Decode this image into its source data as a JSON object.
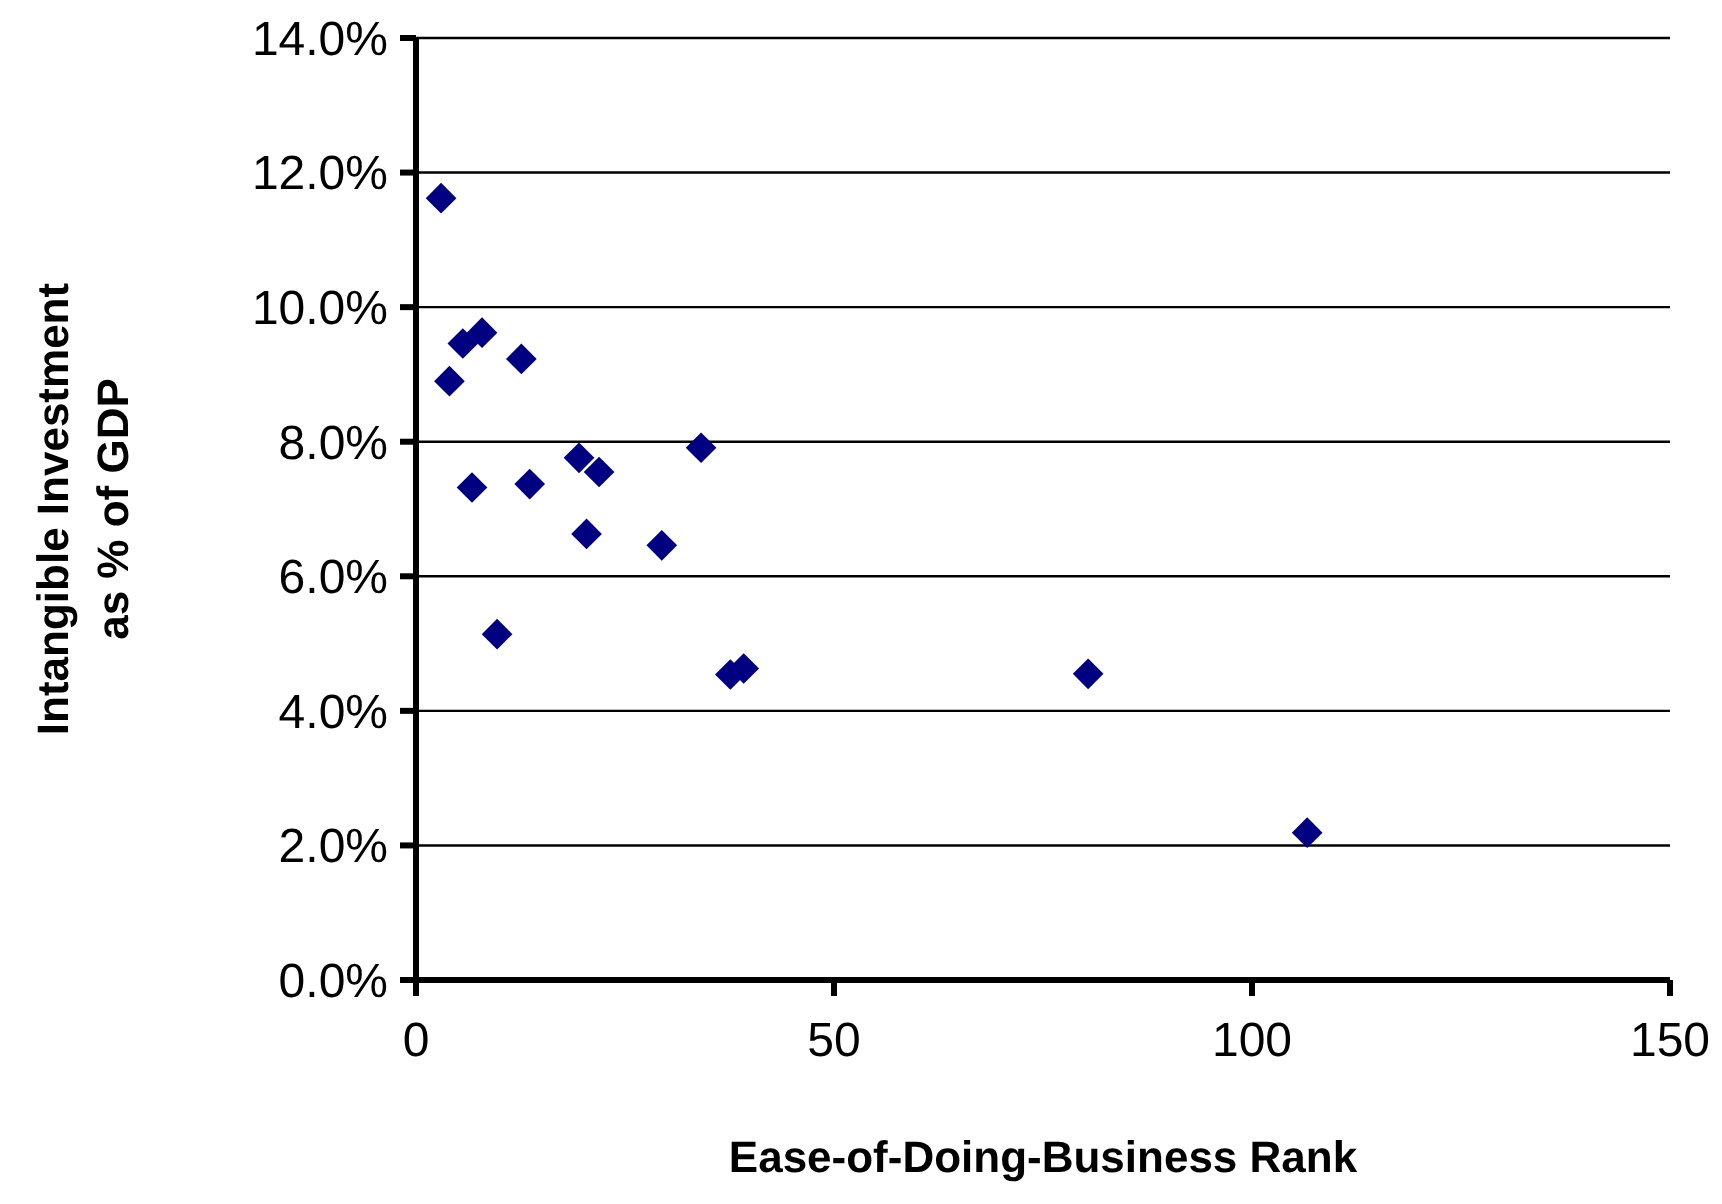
{
  "chart_data": {
    "type": "scatter",
    "xlabel": "Ease-of-Doing-Business Rank",
    "ylabel": "Intangible Investment\nas % of GDP",
    "x": [
      3.0,
      5.6,
      7.9,
      4.0,
      12.6,
      6.7,
      13.6,
      19.5,
      21.9,
      34.1,
      20.4,
      29.4,
      9.7,
      37.6,
      39.2,
      80.4,
      106.6
    ],
    "values": [
      11.62,
      9.46,
      9.62,
      8.9,
      9.23,
      7.32,
      7.37,
      7.76,
      7.55,
      7.91,
      6.63,
      6.46,
      5.14,
      4.54,
      4.63,
      4.55,
      2.19
    ],
    "color": "#000080",
    "marker": "diamond",
    "xlim": [
      0,
      150
    ],
    "xticks": [
      0,
      50,
      100,
      150
    ],
    "ylim": [
      0,
      14
    ],
    "yticks": [
      {
        "value": 0,
        "label": "0.0%"
      },
      {
        "value": 2,
        "label": "2.0%"
      },
      {
        "value": 4,
        "label": "4.0%"
      },
      {
        "value": 6,
        "label": "6.0%"
      },
      {
        "value": 8,
        "label": "8.0%"
      },
      {
        "value": 10,
        "label": "10.0%"
      },
      {
        "value": 12,
        "label": "12.0%"
      },
      {
        "value": 14,
        "label": "14.0%"
      }
    ],
    "grid": "y"
  }
}
